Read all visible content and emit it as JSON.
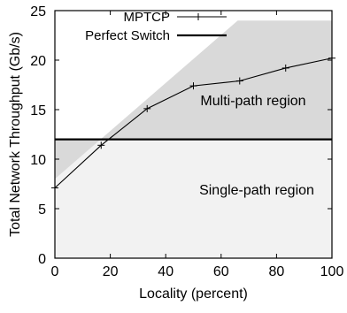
{
  "chart_data": {
    "type": "line",
    "xlabel": "Locality (percent)",
    "ylabel": "Total Network Throughput (Gb/s)",
    "xlim": [
      0,
      100
    ],
    "ylim": [
      0,
      25
    ],
    "x_ticks": [
      0,
      20,
      40,
      60,
      80,
      100
    ],
    "y_ticks": [
      0,
      5,
      10,
      15,
      20,
      25
    ],
    "grid": false,
    "legend_position": "top",
    "legend": [
      {
        "label": "MPTCP",
        "style": "line-with-plus-markers"
      },
      {
        "label": "Perfect Switch",
        "style": "thick-line"
      }
    ],
    "series": [
      {
        "name": "MPTCP",
        "x": [
          0,
          16.7,
          33.3,
          50,
          66.7,
          83.3,
          100
        ],
        "y": [
          7.1,
          11.4,
          15.1,
          17.4,
          17.9,
          19.2,
          20.2
        ]
      },
      {
        "name": "Perfect Switch",
        "x": [
          0,
          100
        ],
        "y": [
          12,
          12
        ]
      }
    ],
    "regions": [
      {
        "label": "Multi-path region",
        "color": "#d9d9d9",
        "upper": {
          "x": [
            0,
            66,
            100
          ],
          "y": [
            8,
            24,
            24
          ]
        }
      },
      {
        "label": "Single-path region",
        "color": "#f2f2f2",
        "upper": {
          "x": [
            0,
            100
          ],
          "y": [
            12,
            12
          ]
        }
      }
    ],
    "colors": {
      "region_dark": "#d9d9d9",
      "region_light": "#f2f2f2",
      "line": "#000000"
    }
  }
}
